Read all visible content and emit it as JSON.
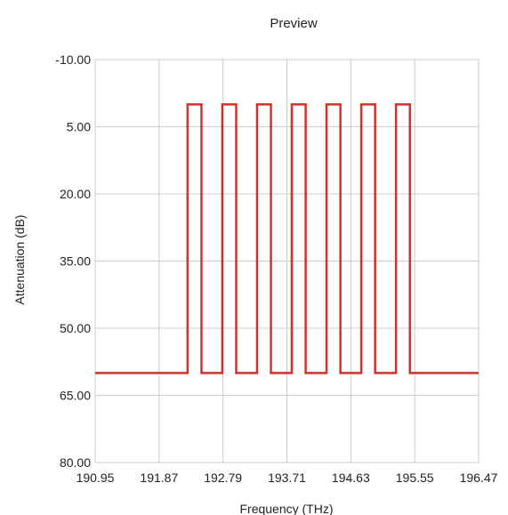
{
  "chart_data": {
    "type": "line",
    "title": "Preview",
    "xlabel": "Frequency (THz)",
    "ylabel": "Attenuation (dB)",
    "xlim": [
      190.95,
      196.47
    ],
    "ylim": [
      -10.0,
      80.0
    ],
    "y_inverted": true,
    "grid": true,
    "x_ticks": [
      "190.95",
      "191.87",
      "192.79",
      "193.71",
      "194.63",
      "195.55",
      "196.47"
    ],
    "y_ticks": [
      "-10.00",
      "5.00",
      "20.00",
      "35.00",
      "50.00",
      "65.00",
      "80.00"
    ],
    "series": [
      {
        "color": "#d0312d",
        "x": [
          190.95,
          192.28,
          192.28,
          192.48,
          192.48,
          192.78,
          192.78,
          192.98,
          192.98,
          193.28,
          193.28,
          193.48,
          193.48,
          193.78,
          193.78,
          193.98,
          193.98,
          194.28,
          194.28,
          194.48,
          194.48,
          194.78,
          194.78,
          194.98,
          194.98,
          195.28,
          195.28,
          195.48,
          195.48,
          196.47
        ],
        "y": [
          60,
          60,
          0,
          0,
          60,
          60,
          0,
          0,
          60,
          60,
          0,
          0,
          60,
          60,
          0,
          0,
          60,
          60,
          0,
          0,
          60,
          60,
          0,
          0,
          60,
          60,
          0,
          0,
          60,
          60
        ]
      }
    ]
  }
}
